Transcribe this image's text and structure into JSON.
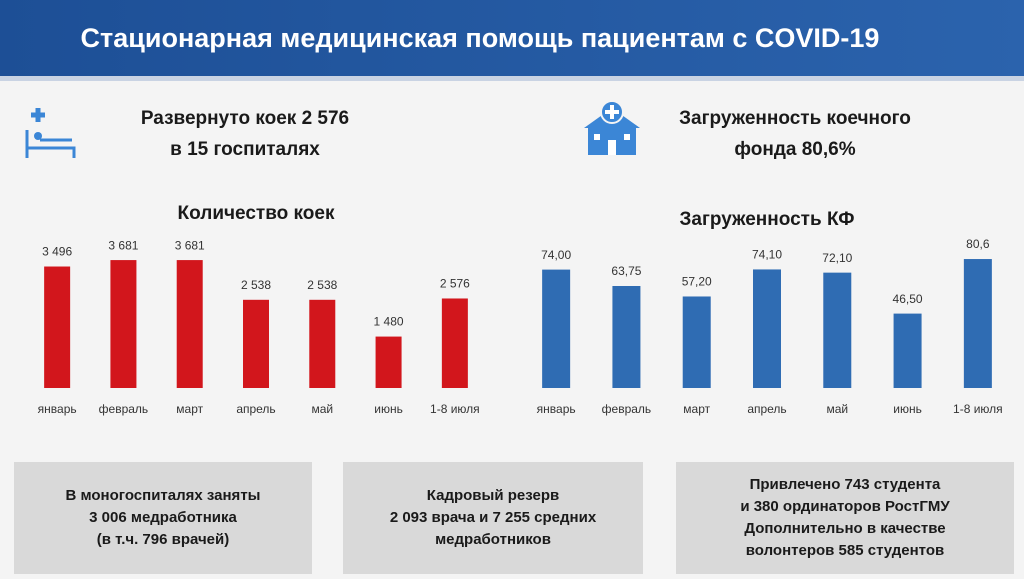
{
  "header": {
    "title": "Стационарная медицинская помощь пациентам с COVID-19"
  },
  "info": [
    {
      "lines": [
        "Развернуто коек 2 576",
        "в 15 госпиталях"
      ]
    },
    {
      "lines": [
        "Загруженность коечного",
        "фонда 80,6%"
      ]
    }
  ],
  "chart_data": [
    {
      "type": "bar",
      "title": "Количество коек",
      "categories": [
        "январь",
        "февраль",
        "март",
        "апрель",
        "май",
        "июнь",
        "1-8 июля"
      ],
      "values": [
        3496,
        3681,
        3681,
        2538,
        2538,
        1480,
        2576
      ],
      "value_labels": [
        "3 496",
        "3 681",
        "3 681",
        "2 538",
        "2 538",
        "1 480",
        "2 576"
      ],
      "color": "#d2161c",
      "ylim": [
        0,
        4000
      ]
    },
    {
      "type": "bar",
      "title": "Загруженность КФ",
      "categories": [
        "январь",
        "февраль",
        "март",
        "апрель",
        "май",
        "июнь",
        "1-8 июля"
      ],
      "values": [
        74.0,
        63.75,
        57.2,
        74.1,
        72.1,
        46.5,
        80.6
      ],
      "value_labels": [
        "74,00",
        "63,75",
        "57,20",
        "74,10",
        "72,10",
        "46,50",
        "80,6"
      ],
      "color": "#2f6cb3",
      "ylim": [
        0,
        90
      ]
    }
  ],
  "boxes": [
    {
      "lines": [
        "В моногоспиталях заняты",
        "3 006 медработника",
        "(в т.ч. 796 врачей)"
      ]
    },
    {
      "lines": [
        "Кадровый резерв",
        "2 093 врача и 7 255 средних",
        "медработников"
      ]
    },
    {
      "lines": [
        "Привлечено 743 студента",
        "и 380 ординаторов РостГМУ",
        "Дополнительно в качестве",
        "волонтеров 585 студентов"
      ]
    }
  ]
}
